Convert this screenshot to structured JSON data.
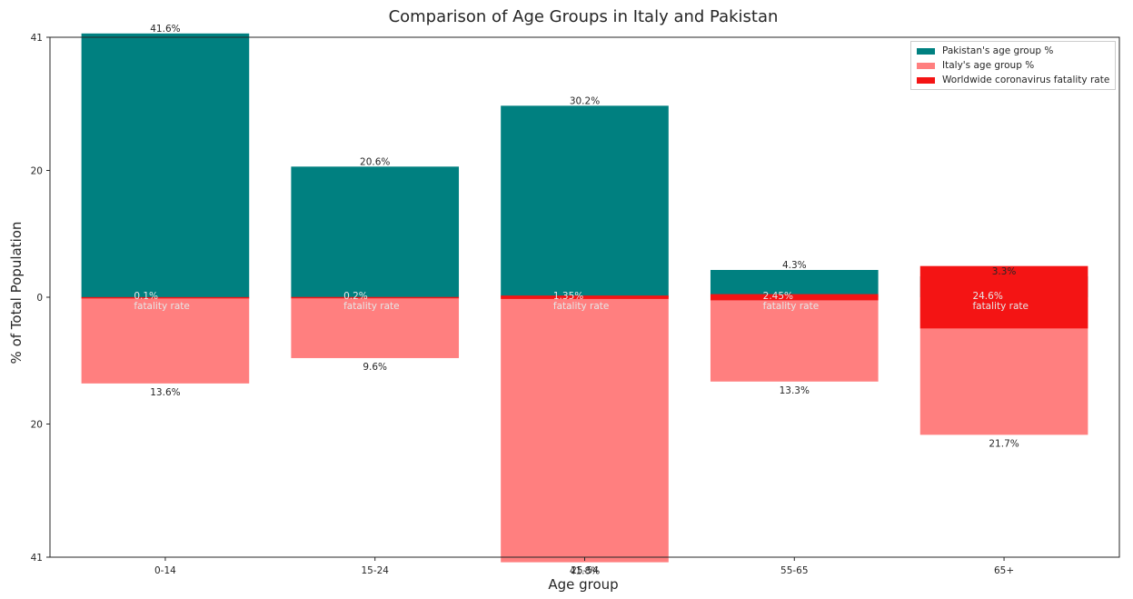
{
  "chart_data": {
    "type": "bar",
    "title": "Comparison of Age Groups in Italy and Pakistan",
    "xlabel": "Age group",
    "ylabel": "% of Total Population",
    "categories": [
      "0-14",
      "15-24",
      "25-54",
      "55-65",
      "65+"
    ],
    "ylim": [
      -41,
      41
    ],
    "y_ticks": [
      {
        "value": 41,
        "label": "41"
      },
      {
        "value": 20,
        "label": "20"
      },
      {
        "value": 0,
        "label": "0"
      },
      {
        "value": -20,
        "label": "20"
      },
      {
        "value": -41,
        "label": "41"
      }
    ],
    "grid": false,
    "legend_position": "top-right",
    "series": [
      {
        "name": "Pakistan's age group %",
        "values": [
          41.6,
          20.6,
          30.2,
          4.3,
          3.3
        ],
        "labels": [
          "41.6%",
          "20.6%",
          "30.2%",
          "4.3%",
          "3.3%"
        ],
        "direction": "up",
        "color": "#008080"
      },
      {
        "name": "Italy's age group %",
        "values": [
          13.6,
          9.6,
          41.8,
          13.3,
          21.7
        ],
        "labels": [
          "13.6%",
          "9.6%",
          "41.8%",
          "13.3%",
          "21.7%"
        ],
        "direction": "down",
        "color": "#ff7f7f"
      },
      {
        "name": "Worldwide coronavirus fatality rate",
        "values": [
          0.1,
          0.2,
          1.35,
          2.45,
          24.6
        ],
        "labels": [
          "0.1%",
          "0.2%",
          "1.35%",
          "2.45%",
          "24.6%"
        ],
        "annotation": "fatality rate",
        "color": "#f41414"
      }
    ]
  }
}
